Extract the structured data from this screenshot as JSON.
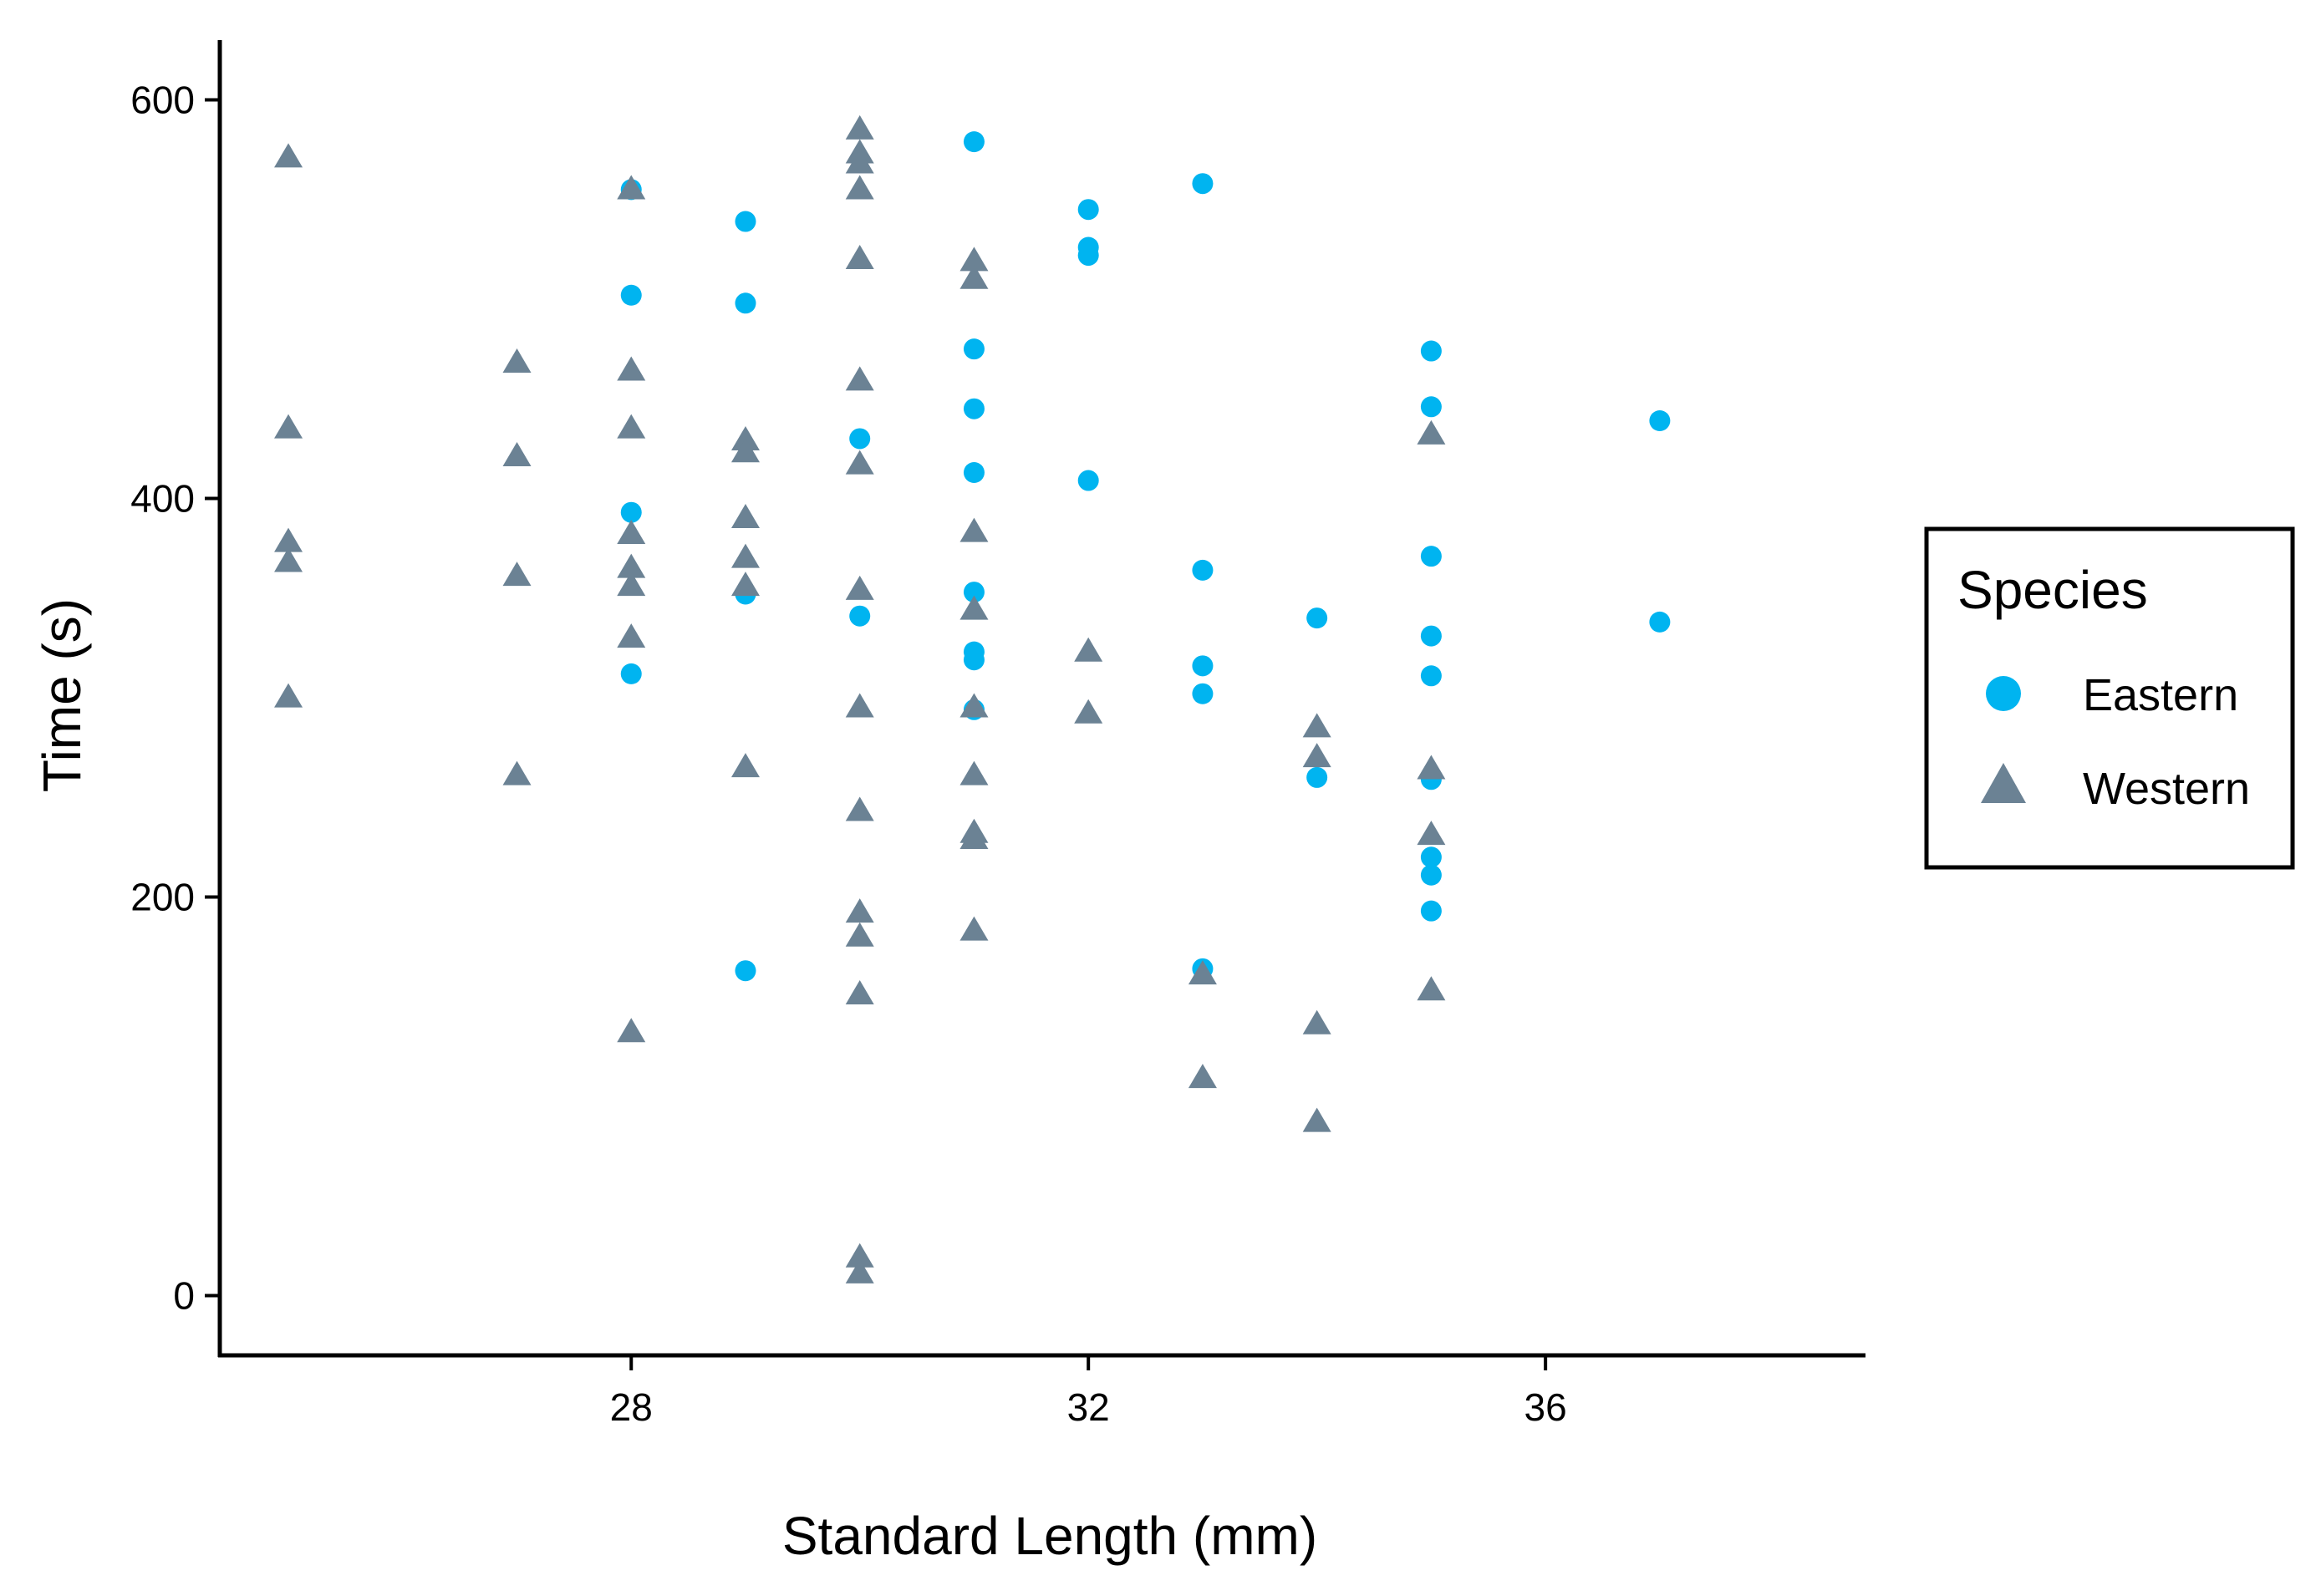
{
  "colors": {
    "eastern": "#00B4F0",
    "western": "#6B8294"
  },
  "chart_data": {
    "type": "scatter",
    "title": "",
    "xlabel": "Standard Length (mm)",
    "ylabel": "Time (s)",
    "xlim": [
      24.4,
      38.8
    ],
    "ylim": [
      -30,
      630
    ],
    "xticks": [
      28,
      32,
      36
    ],
    "yticks": [
      0,
      200,
      400,
      600
    ],
    "grid": false,
    "legend": {
      "title": "Species",
      "placement": "right",
      "entries": [
        "Eastern",
        "Western"
      ]
    },
    "series": [
      {
        "name": "Eastern",
        "marker": "circle",
        "points": [
          [
            28,
            555
          ],
          [
            28,
            502
          ],
          [
            28,
            393
          ],
          [
            28,
            312
          ],
          [
            29,
            539
          ],
          [
            29,
            498
          ],
          [
            29,
            352
          ],
          [
            29,
            163
          ],
          [
            30,
            430
          ],
          [
            30,
            341
          ],
          [
            31,
            579
          ],
          [
            31,
            475
          ],
          [
            31,
            445
          ],
          [
            31,
            413
          ],
          [
            31,
            353
          ],
          [
            31,
            323
          ],
          [
            31,
            319
          ],
          [
            31,
            294
          ],
          [
            32,
            545
          ],
          [
            32,
            526
          ],
          [
            32,
            522
          ],
          [
            32,
            409
          ],
          [
            33,
            558
          ],
          [
            33,
            364
          ],
          [
            33,
            316
          ],
          [
            33,
            302
          ],
          [
            33,
            164
          ],
          [
            34,
            340
          ],
          [
            34,
            260
          ],
          [
            35,
            474
          ],
          [
            35,
            446
          ],
          [
            35,
            371
          ],
          [
            35,
            331
          ],
          [
            35,
            311
          ],
          [
            35,
            259
          ],
          [
            35,
            220
          ],
          [
            35,
            211
          ],
          [
            35,
            193
          ],
          [
            37,
            439
          ],
          [
            37,
            338
          ]
        ]
      },
      {
        "name": "Western",
        "marker": "triangle",
        "points": [
          [
            25,
            572
          ],
          [
            25,
            436
          ],
          [
            25,
            379
          ],
          [
            25,
            369
          ],
          [
            25,
            301
          ],
          [
            27,
            469
          ],
          [
            27,
            422
          ],
          [
            27,
            362
          ],
          [
            27,
            262
          ],
          [
            28,
            556
          ],
          [
            28,
            465
          ],
          [
            28,
            436
          ],
          [
            28,
            383
          ],
          [
            28,
            366
          ],
          [
            28,
            357
          ],
          [
            28,
            331
          ],
          [
            28,
            133
          ],
          [
            29,
            430
          ],
          [
            29,
            424
          ],
          [
            29,
            391
          ],
          [
            29,
            371
          ],
          [
            29,
            357
          ],
          [
            29,
            266
          ],
          [
            30,
            586
          ],
          [
            30,
            574
          ],
          [
            30,
            569
          ],
          [
            30,
            556
          ],
          [
            30,
            521
          ],
          [
            30,
            460
          ],
          [
            30,
            418
          ],
          [
            30,
            355
          ],
          [
            30,
            296
          ],
          [
            30,
            244
          ],
          [
            30,
            193
          ],
          [
            30,
            181
          ],
          [
            30,
            152
          ],
          [
            30,
            20
          ],
          [
            30,
            12
          ],
          [
            31,
            520
          ],
          [
            31,
            511
          ],
          [
            31,
            384
          ],
          [
            31,
            345
          ],
          [
            31,
            296
          ],
          [
            31,
            262
          ],
          [
            31,
            233
          ],
          [
            31,
            230
          ],
          [
            31,
            184
          ],
          [
            32,
            324
          ],
          [
            32,
            293
          ],
          [
            33,
            162
          ],
          [
            33,
            110
          ],
          [
            34,
            286
          ],
          [
            34,
            271
          ],
          [
            34,
            137
          ],
          [
            34,
            88
          ],
          [
            35,
            433
          ],
          [
            35,
            265
          ],
          [
            35,
            232
          ],
          [
            35,
            154
          ]
        ]
      }
    ]
  }
}
